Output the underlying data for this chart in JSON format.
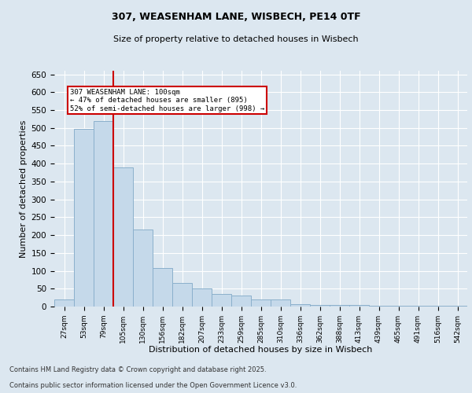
{
  "title1": "307, WEASENHAM LANE, WISBECH, PE14 0TF",
  "title2": "Size of property relative to detached houses in Wisbech",
  "xlabel": "Distribution of detached houses by size in Wisbech",
  "ylabel": "Number of detached properties",
  "categories": [
    "27sqm",
    "53sqm",
    "79sqm",
    "105sqm",
    "130sqm",
    "156sqm",
    "182sqm",
    "207sqm",
    "233sqm",
    "259sqm",
    "285sqm",
    "310sqm",
    "336sqm",
    "362sqm",
    "388sqm",
    "413sqm",
    "439sqm",
    "465sqm",
    "491sqm",
    "516sqm",
    "542sqm"
  ],
  "values": [
    20,
    498,
    520,
    390,
    215,
    108,
    65,
    50,
    35,
    30,
    20,
    20,
    6,
    5,
    5,
    5,
    2,
    2,
    2,
    2,
    2
  ],
  "bar_color": "#c5d9ea",
  "bar_edge_color": "#8bb0cc",
  "bg_color": "#dce7f0",
  "grid_color": "#ffffff",
  "vline_color": "#cc0000",
  "vline_index": 2.5,
  "annotation_text_line1": "307 WEASENHAM LANE: 100sqm",
  "annotation_text_line2": "← 47% of detached houses are smaller (895)",
  "annotation_text_line3": "52% of semi-detached houses are larger (998) →",
  "ylim": [
    0,
    660
  ],
  "yticks": [
    0,
    50,
    100,
    150,
    200,
    250,
    300,
    350,
    400,
    450,
    500,
    550,
    600,
    650
  ],
  "footer1": "Contains HM Land Registry data © Crown copyright and database right 2025.",
  "footer2": "Contains public sector information licensed under the Open Government Licence v3.0."
}
